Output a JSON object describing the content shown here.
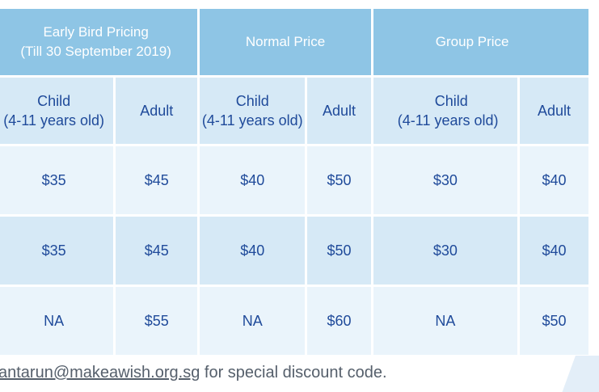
{
  "headers": {
    "early_bird_line1": "Early Bird Pricing",
    "early_bird_line2": "(Till 30 September 2019)",
    "normal": "Normal Price",
    "group": "Group Price"
  },
  "subheaders": {
    "child_line1": "Child",
    "child_line2": "(4-11 years old)",
    "adult": "Adult"
  },
  "rows": [
    [
      "$35",
      "$45",
      "$40",
      "$50",
      "$30",
      "$40"
    ],
    [
      "$35",
      "$45",
      "$40",
      "$50",
      "$30",
      "$40"
    ],
    [
      "NA",
      "$55",
      "NA",
      "$60",
      "NA",
      "$50"
    ]
  ],
  "footer": {
    "email": "santarun@makeawish.org.sg",
    "text": " for special discount code."
  }
}
